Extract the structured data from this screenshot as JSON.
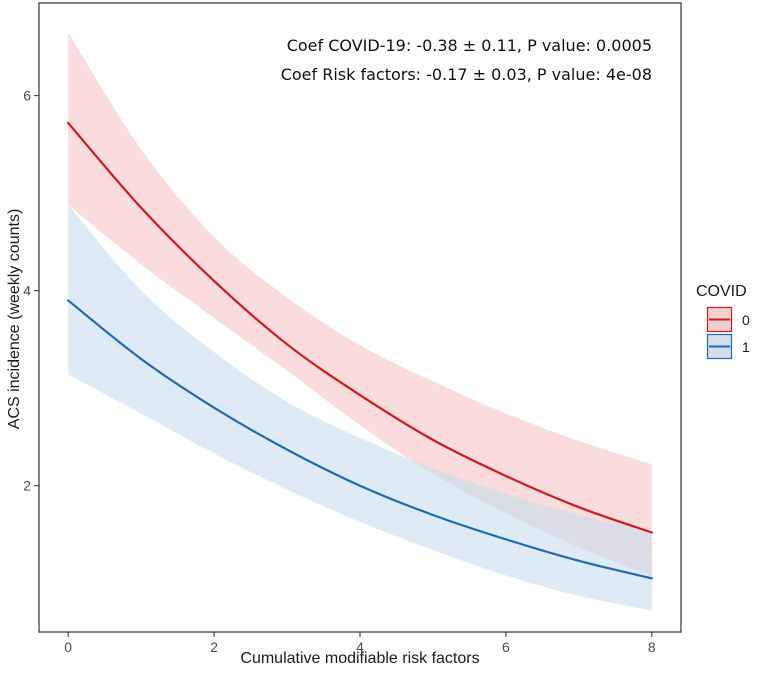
{
  "chart_data": {
    "type": "line",
    "title": "",
    "xlabel": "Cumulative modifiable risk factors",
    "ylabel": "ACS incidence (weekly counts)",
    "xlim": [
      -0.4,
      8.4
    ],
    "ylim": [
      0.5,
      6.95
    ],
    "xticks": [
      0,
      2,
      4,
      6,
      8
    ],
    "yticks": [
      2,
      4,
      6
    ],
    "grid": false,
    "annotations": [
      "Coef COVID-19: -0.38 ± 0.11, P value: 0.0005",
      "Coef Risk factors: -0.17 ± 0.03, P value: 4e-08"
    ],
    "legend": {
      "title": "COVID",
      "placement": "right"
    },
    "x": [
      0,
      1,
      2,
      3,
      4,
      5,
      6,
      7,
      8
    ],
    "series": [
      {
        "name": "0",
        "color": "#cc1a1f",
        "band_color": "#f8c4c6",
        "values": [
          5.72,
          4.85,
          4.1,
          3.45,
          2.93,
          2.47,
          2.1,
          1.78,
          1.52
        ],
        "lower": [
          4.88,
          4.27,
          3.72,
          3.18,
          2.62,
          2.12,
          1.72,
          1.37,
          1.07
        ],
        "upper": [
          6.65,
          5.45,
          4.55,
          3.93,
          3.44,
          3.07,
          2.74,
          2.46,
          2.22
        ]
      },
      {
        "name": "1",
        "color": "#1f69b3",
        "band_color": "#c8dcee",
        "values": [
          3.9,
          3.3,
          2.8,
          2.37,
          2.0,
          1.7,
          1.45,
          1.23,
          1.05
        ],
        "lower": [
          3.14,
          2.74,
          2.33,
          1.96,
          1.63,
          1.34,
          1.08,
          0.87,
          0.72
        ],
        "upper": [
          4.88,
          4.0,
          3.37,
          2.86,
          2.49,
          2.18,
          1.92,
          1.7,
          1.52
        ]
      }
    ]
  }
}
